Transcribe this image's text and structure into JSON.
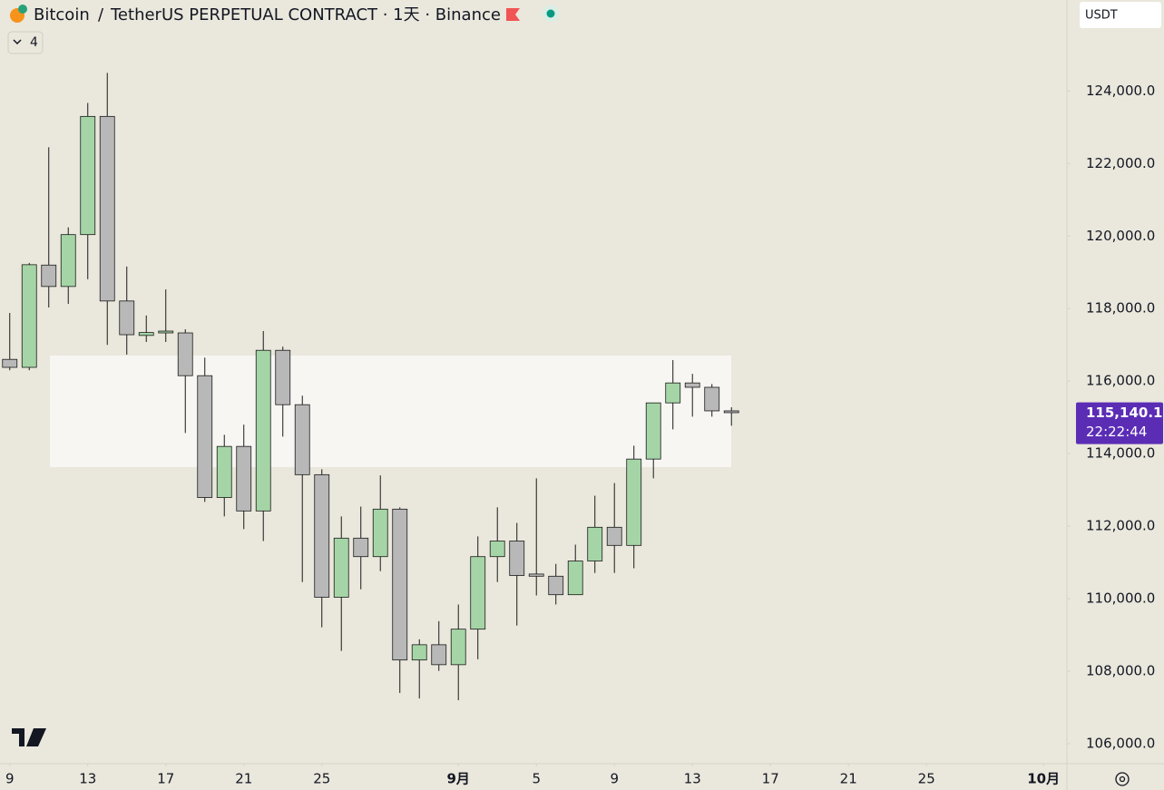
{
  "chart_data": {
    "type": "candlestick",
    "symbol": "Bitcoin",
    "separator": "/",
    "title": "TetherUS PERPETUAL CONTRACT · 1天 · Binance",
    "currency": "USDT",
    "indicator_count": "4",
    "up_color": "#a5d5a6",
    "down_color": "#b8b8b8",
    "outline_color": "#1a1a1a",
    "x": [
      0,
      1,
      2,
      3,
      4,
      5,
      6,
      7,
      8,
      9,
      10,
      11,
      12,
      13,
      14,
      15,
      16,
      17,
      18,
      19,
      20,
      21,
      22,
      23,
      24,
      25,
      26,
      27,
      28,
      29,
      30,
      31,
      32,
      33,
      34,
      35,
      36,
      37
    ],
    "open": [
      116600,
      116380,
      119200,
      118610,
      120040,
      123300,
      118210,
      117260,
      117330,
      117330,
      116150,
      112790,
      114200,
      112420,
      116850,
      115350,
      113420,
      110040,
      111670,
      111160,
      112470,
      108310,
      108730,
      108180,
      109160,
      111160,
      111590,
      110680,
      110620,
      110110,
      111040,
      111970,
      111470,
      113850,
      115400,
      115950,
      115830,
      115180
    ],
    "high": [
      117880,
      119260,
      122450,
      120240,
      123670,
      124500,
      119160,
      117810,
      118530,
      117430,
      116650,
      114520,
      114800,
      117380,
      116950,
      115600,
      113570,
      112270,
      112540,
      113400,
      112520,
      108880,
      109380,
      109840,
      111720,
      112520,
      112090,
      113320,
      110960,
      111490,
      112840,
      113190,
      114220,
      115400,
      116580,
      116200,
      115920,
      115280
    ],
    "low": [
      116300,
      116300,
      118030,
      118130,
      118810,
      117000,
      116730,
      117080,
      117080,
      114570,
      112670,
      112270,
      111920,
      111590,
      114470,
      110460,
      109210,
      108560,
      110260,
      110760,
      107400,
      107250,
      108010,
      107200,
      108330,
      110460,
      109260,
      110090,
      109840,
      110110,
      110710,
      110710,
      110840,
      113320,
      114670,
      115020,
      115020,
      114770
    ],
    "close": [
      116380,
      119210,
      118610,
      120040,
      123300,
      118210,
      117280,
      117340,
      117380,
      116150,
      112790,
      114200,
      112420,
      116850,
      115350,
      113420,
      110040,
      111670,
      111160,
      112470,
      108310,
      108730,
      108180,
      109160,
      111160,
      111590,
      110640,
      110620,
      110110,
      111040,
      111970,
      111470,
      113850,
      115400,
      115950,
      115830,
      115180,
      115140.1
    ],
    "xlim": [
      -0.5,
      54.2
    ],
    "xticks": [
      {
        "value": 0,
        "label": "9"
      },
      {
        "value": 4,
        "label": "13"
      },
      {
        "value": 8,
        "label": "17"
      },
      {
        "value": 12,
        "label": "21"
      },
      {
        "value": 16,
        "label": "25"
      },
      {
        "value": 23,
        "label": "9月"
      },
      {
        "value": 27,
        "label": "5"
      },
      {
        "value": 31,
        "label": "9"
      },
      {
        "value": 35,
        "label": "13"
      },
      {
        "value": 39,
        "label": "17"
      },
      {
        "value": 43,
        "label": "21"
      },
      {
        "value": 47,
        "label": "25"
      },
      {
        "value": 53,
        "label": "10月"
      }
    ],
    "ylim": [
      105450,
      126510
    ],
    "yticks": [
      {
        "value": 106000,
        "label": "106,000.0"
      },
      {
        "value": 108000,
        "label": "108,000.0"
      },
      {
        "value": 110000,
        "label": "110,000.0"
      },
      {
        "value": 112000,
        "label": "112,000.0"
      },
      {
        "value": 114000,
        "label": "114,000.0"
      },
      {
        "value": 116000,
        "label": "116,000.0"
      },
      {
        "value": 118000,
        "label": "118,000.0"
      },
      {
        "value": 120000,
        "label": "120,000.0"
      },
      {
        "value": 122000,
        "label": "122,000.0"
      },
      {
        "value": 124000,
        "label": "124,000.0"
      }
    ],
    "last_price": {
      "value": 115140.1,
      "label": "115,140.1"
    },
    "countdown": "22:22:44",
    "last_color": "#5b2db5"
  }
}
